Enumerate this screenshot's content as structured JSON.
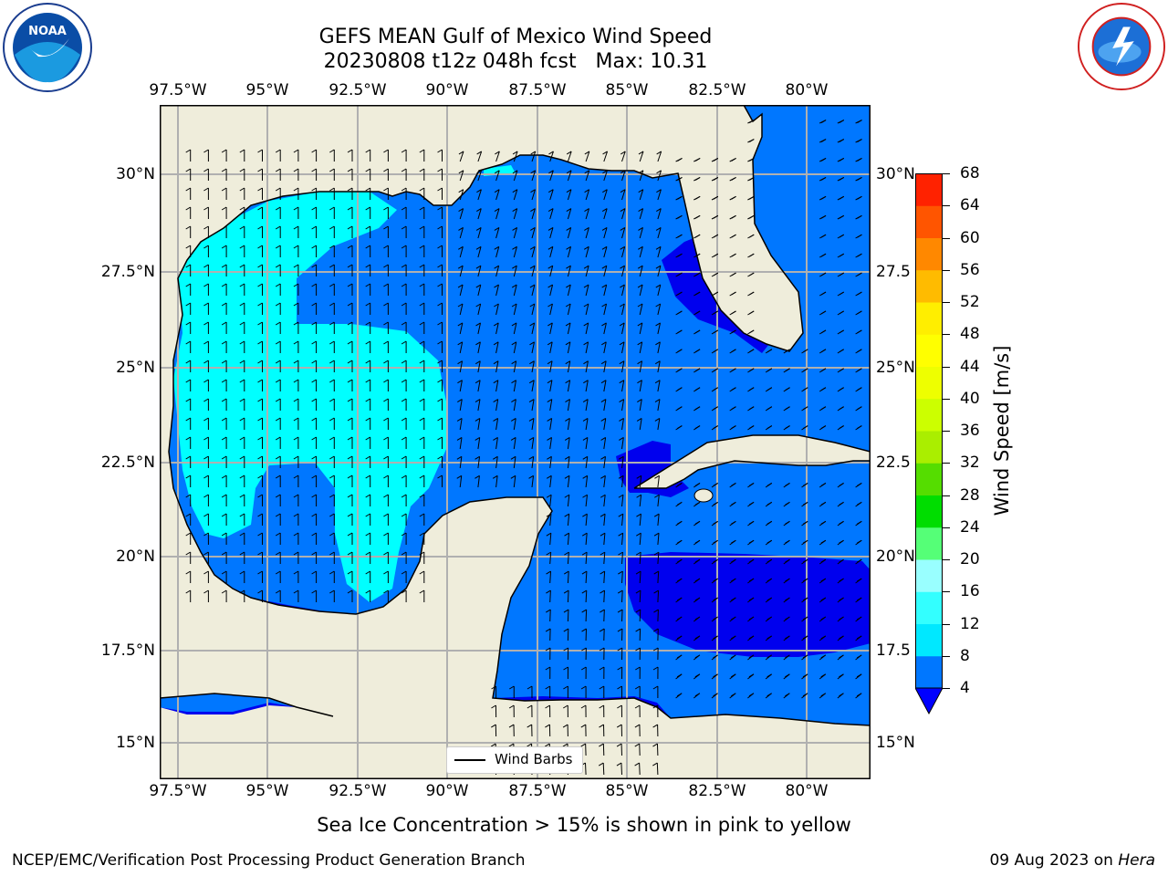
{
  "header": {
    "title_line1": "GEFS MEAN Gulf of Mexico Wind Speed",
    "title_line2": "20230808 t12z 048h fcst   Max: 10.31"
  },
  "axes": {
    "lon_labels": [
      "97.5°W",
      "95°W",
      "92.5°W",
      "90°W",
      "87.5°W",
      "85°W",
      "82.5°W",
      "80°W"
    ],
    "lat_labels_left": [
      "30°N",
      "27.5°N",
      "25°N",
      "22.5°N",
      "20°N",
      "17.5°N",
      "15°N"
    ],
    "lat_labels_right": [
      "30°N",
      "27.5",
      "25°N",
      "22.5",
      "20°N",
      "17.5",
      "15°N"
    ]
  },
  "legend": {
    "label": "Wind Barbs"
  },
  "colorbar": {
    "title": "Wind Speed [m/s]",
    "ticks": [
      "4",
      "8",
      "12",
      "16",
      "20",
      "24",
      "28",
      "32",
      "36",
      "40",
      "44",
      "48",
      "52",
      "56",
      "60",
      "64",
      "68"
    ],
    "colors": [
      "#0077ff",
      "#00e8ff",
      "#33ffff",
      "#99ffff",
      "#55ff77",
      "#00dd00",
      "#55dd00",
      "#aaee00",
      "#ccff00",
      "#eeff00",
      "#ffff00",
      "#ffee00",
      "#ffbb00",
      "#ff8800",
      "#ff5500",
      "#ff2200"
    ],
    "under_color": "#0000ff"
  },
  "colors": {
    "land": "#efeddb",
    "ocean_4_8": "#0077ff",
    "ocean_8_12": "#00ffff",
    "ocean_lt4": "#0000ee",
    "grid": "#b0b0b0"
  },
  "logos": {
    "left": "noaa-logo",
    "right": "nws-logo"
  },
  "footer": {
    "note": "Sea Ice Concentration > 15% is shown in pink to yellow",
    "credit_left": "NCEP/EMC/Verification Post Processing Product Generation Branch",
    "date": "09 Aug 2023 on ",
    "machine": "Hera"
  }
}
